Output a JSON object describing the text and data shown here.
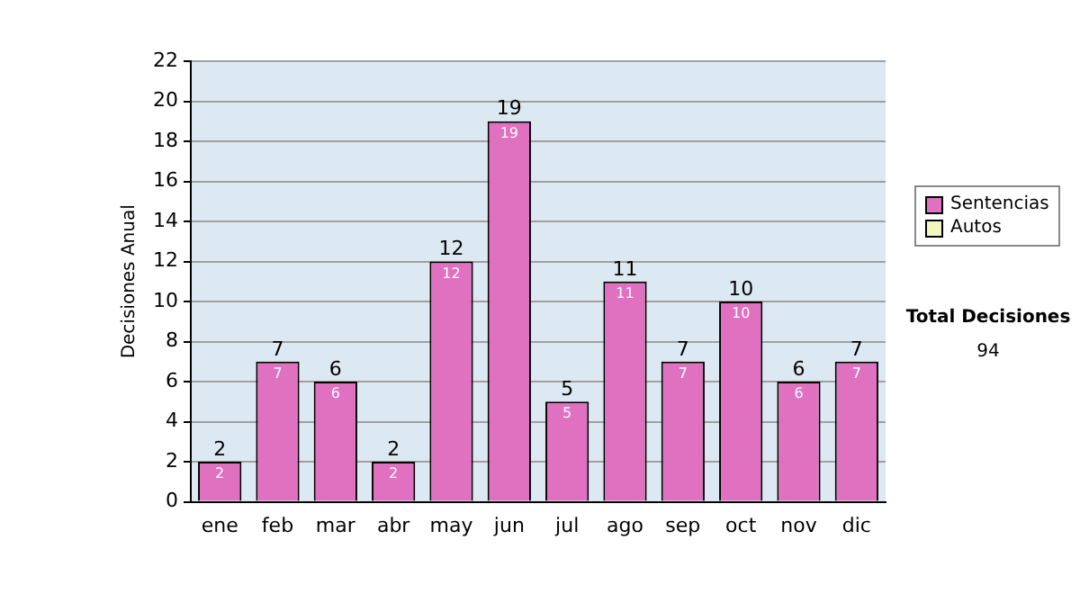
{
  "chart_data": {
    "type": "bar",
    "stacked": true,
    "ylabel": "Decisiones Anual",
    "categories": [
      "ene",
      "feb",
      "mar",
      "abr",
      "may",
      "jun",
      "jul",
      "ago",
      "sep",
      "oct",
      "nov",
      "dic"
    ],
    "series": [
      {
        "name": "Sentencias",
        "color": "#e070c0",
        "values": [
          2,
          7,
          6,
          2,
          12,
          19,
          5,
          11,
          7,
          10,
          6,
          7
        ],
        "value_labels": [
          "2",
          "7",
          "6",
          "2",
          "12",
          "19",
          "5",
          "11",
          "7",
          "10",
          "6",
          "7"
        ]
      },
      {
        "name": "Autos",
        "color": "#f0f8c0",
        "values": [
          0,
          0,
          0,
          0,
          0,
          0,
          0,
          0,
          0,
          0,
          0,
          0
        ]
      }
    ],
    "totals": [
      "2",
      "7",
      "6",
      "2",
      "12",
      "19",
      "5",
      "11",
      "7",
      "10",
      "6",
      "7"
    ],
    "ylim": [
      0,
      22
    ],
    "yticks": [
      0,
      2,
      4,
      6,
      8,
      10,
      12,
      14,
      16,
      18,
      20,
      22
    ],
    "grid": "y",
    "legend": "right",
    "annotations": [
      "Total Decisiones",
      "94"
    ]
  }
}
